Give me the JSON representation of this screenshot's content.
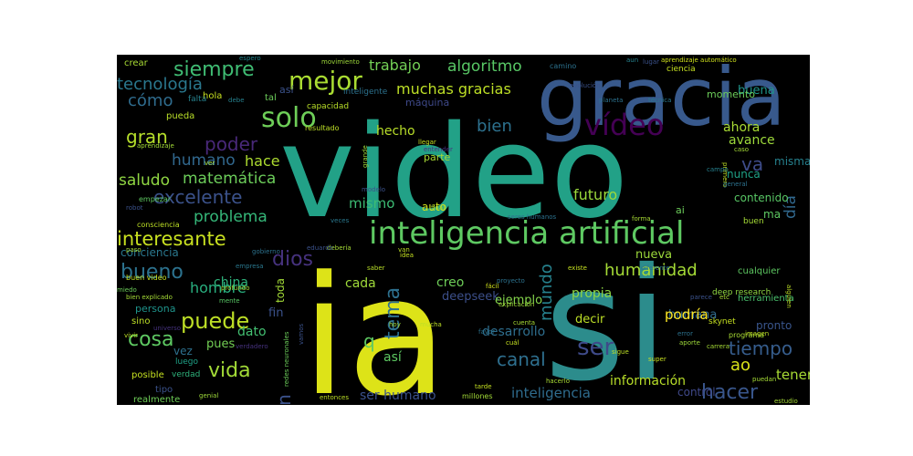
{
  "wordcloud": {
    "background": "#000000",
    "words": [
      {
        "text": "video",
        "color": "#22a187"
      },
      {
        "text": "ia",
        "color": "#dde318"
      },
      {
        "text": "si",
        "color": "#2c8c8c"
      },
      {
        "text": "gracia",
        "color": "#38598c"
      },
      {
        "text": "inteligencia artificial",
        "color": "#5ec962"
      },
      {
        "text": "vídeo",
        "color": "#440154"
      },
      {
        "text": "solo",
        "color": "#6ece58"
      },
      {
        "text": "mejor",
        "color": "#aadc32"
      },
      {
        "text": "siempre",
        "color": "#3fbc73"
      },
      {
        "text": "tecnología",
        "color": "#2a788e"
      },
      {
        "text": "cómo",
        "color": "#2f6c8e"
      },
      {
        "text": "gran",
        "color": "#b5de2b"
      },
      {
        "text": "poder",
        "color": "#482878"
      },
      {
        "text": "humano",
        "color": "#31688e"
      },
      {
        "text": "hace",
        "color": "#addc30"
      },
      {
        "text": "saludo",
        "color": "#90d743"
      },
      {
        "text": "matemática",
        "color": "#6ccd5a"
      },
      {
        "text": "excelente",
        "color": "#3b528b"
      },
      {
        "text": "problema",
        "color": "#35b779"
      },
      {
        "text": "interesante",
        "color": "#c8e020"
      },
      {
        "text": "dios",
        "color": "#46327e"
      },
      {
        "text": "bueno",
        "color": "#2c728e"
      },
      {
        "text": "puede",
        "color": "#bddf26"
      },
      {
        "text": "cosa",
        "color": "#5ec962"
      },
      {
        "text": "vida",
        "color": "#a2da37"
      },
      {
        "text": "tema",
        "color": "#2d708e"
      },
      {
        "text": "mundo",
        "color": "#26828e"
      },
      {
        "text": "canal",
        "color": "#2e6f8e"
      },
      {
        "text": "ser",
        "color": "#3e4a89"
      },
      {
        "text": "tan",
        "color": "#3b528b"
      },
      {
        "text": "hacer",
        "color": "#39568c"
      },
      {
        "text": "humanidad",
        "color": "#a5db36"
      },
      {
        "text": "tiempo",
        "color": "#365d8d"
      },
      {
        "text": "bien",
        "color": "#2d718e"
      },
      {
        "text": "trabajo",
        "color": "#73d056"
      },
      {
        "text": "algoritmo",
        "color": "#58c765"
      },
      {
        "text": "muchas gracias",
        "color": "#bddf26"
      },
      {
        "text": "futuro",
        "color": "#9bd93c"
      },
      {
        "text": "va",
        "color": "#3e4c8a"
      },
      {
        "text": "día",
        "color": "#31688e"
      },
      {
        "text": "ahora",
        "color": "#a8db34"
      },
      {
        "text": "avance",
        "color": "#9dd93b"
      },
      {
        "text": "buena",
        "color": "#1f968b"
      },
      {
        "text": "momento",
        "color": "#6ccd5a"
      },
      {
        "text": "ciencia",
        "color": "#c5e021"
      },
      {
        "text": "mismo",
        "color": "#3dbc74"
      },
      {
        "text": "hombre",
        "color": "#29af7f"
      },
      {
        "text": "china",
        "color": "#2fb47c"
      },
      {
        "text": "conciencia",
        "color": "#2a788e"
      },
      {
        "text": "desarrollo",
        "color": "#2e6e8e"
      },
      {
        "text": "creo",
        "color": "#6ece58"
      },
      {
        "text": "así",
        "color": "#5ec962"
      },
      {
        "text": "dato",
        "color": "#43bf71"
      },
      {
        "text": "ser humano",
        "color": "#3b528b"
      },
      {
        "text": "inteligencia",
        "color": "#2f6c8e"
      },
      {
        "text": "información",
        "color": "#b8de29"
      },
      {
        "text": "humana",
        "color": "#306a8e"
      },
      {
        "text": "podría",
        "color": "#fde725"
      },
      {
        "text": "propia",
        "color": "#8ed645"
      },
      {
        "text": "ao",
        "color": "#d8e219"
      },
      {
        "text": "tener",
        "color": "#a8db34"
      },
      {
        "text": "control",
        "color": "#3f4889"
      },
      {
        "text": "cada",
        "color": "#9fda3a"
      },
      {
        "text": "toda",
        "color": "#a2da37"
      },
      {
        "text": "fin",
        "color": "#3b528b"
      },
      {
        "text": "pues",
        "color": "#74d055"
      },
      {
        "text": "vez",
        "color": "#2d708e"
      },
      {
        "text": "q",
        "color": "#5ec962"
      },
      {
        "text": "deepseek",
        "color": "#3c4f8a"
      },
      {
        "text": "ejemplo",
        "color": "#84d44b"
      },
      {
        "text": "hecho",
        "color": "#b8de29"
      },
      {
        "text": "parte",
        "color": "#a8db34"
      },
      {
        "text": "auto",
        "color": "#d0e11c"
      },
      {
        "text": "nueva",
        "color": "#9dd93b"
      },
      {
        "text": "decir",
        "color": "#bddf26"
      },
      {
        "text": "pronto",
        "color": "#39558c"
      },
      {
        "text": "nunca",
        "color": "#1fa287"
      },
      {
        "text": "misma",
        "color": "#26818e"
      },
      {
        "text": "contenido",
        "color": "#58c765"
      },
      {
        "text": "ma",
        "color": "#5ec962"
      },
      {
        "text": "ai",
        "color": "#6ccd5a"
      },
      {
        "text": "buen",
        "color": "#a5db36"
      },
      {
        "text": "herramienta",
        "color": "#4ac16d"
      },
      {
        "text": "cualquier",
        "color": "#5ec962"
      },
      {
        "text": "deep research",
        "color": "#90d743"
      },
      {
        "text": "skynet",
        "color": "#c5e021"
      },
      {
        "text": "programa",
        "color": "#a8db34"
      },
      {
        "text": "puedan",
        "color": "#a5db36"
      },
      {
        "text": "persona",
        "color": "#1f948c"
      },
      {
        "text": "sino",
        "color": "#bddf26"
      },
      {
        "text": "luego",
        "color": "#1fa287"
      },
      {
        "text": "posible",
        "color": "#c5e021"
      },
      {
        "text": "tipo",
        "color": "#3b528b"
      },
      {
        "text": "realmente",
        "color": "#6ece58"
      },
      {
        "text": "verdad",
        "color": "#2fb47c"
      },
      {
        "text": "máquina",
        "color": "#3e4989"
      },
      {
        "text": "capacidad",
        "color": "#b8de29"
      },
      {
        "text": "resultado",
        "color": "#bddf26"
      },
      {
        "text": "inteligente",
        "color": "#2c728e"
      },
      {
        "text": "tal",
        "color": "#6ccd5a"
      },
      {
        "text": "hola",
        "color": "#c8e020"
      },
      {
        "text": "falta",
        "color": "#26828e"
      },
      {
        "text": "pueda",
        "color": "#b8de29"
      },
      {
        "text": "así",
        "color": "#3b528b"
      },
      {
        "text": "crear",
        "color": "#a8db34"
      },
      {
        "text": "espero",
        "color": "#24868e"
      },
      {
        "text": "movimiento",
        "color": "#9fda3a"
      },
      {
        "text": "camino",
        "color": "#2c728e"
      },
      {
        "text": "aun",
        "color": "#26818e"
      },
      {
        "text": "lugar",
        "color": "#3b528b"
      },
      {
        "text": "aprendizaje automático",
        "color": "#d0e11c"
      },
      {
        "text": "planeta",
        "color": "#2c728e"
      },
      {
        "text": "técnica",
        "color": "#2a788e"
      },
      {
        "text": "evolución",
        "color": "#3b528b"
      },
      {
        "text": "aprendizaje",
        "color": "#a2da37"
      },
      {
        "text": "debe",
        "color": "#26818e"
      },
      {
        "text": "llegar",
        "color": "#c5e021"
      },
      {
        "text": "grande",
        "color": "#9fda3a"
      },
      {
        "text": "entender",
        "color": "#46327e"
      },
      {
        "text": "final",
        "color": "#a5db36"
      },
      {
        "text": "seres humanos",
        "color": "#2c728e"
      },
      {
        "text": "ver",
        "color": "#a8db34"
      },
      {
        "text": "empezar",
        "color": "#5ec962"
      },
      {
        "text": "robot",
        "color": "#3b528b"
      },
      {
        "text": "consciencia",
        "color": "#bddf26"
      },
      {
        "text": "paso",
        "color": "#a8db34"
      },
      {
        "text": "buen video",
        "color": "#c5e021"
      },
      {
        "text": "miedo",
        "color": "#6ccd5a"
      },
      {
        "text": "bien explicado",
        "color": "#a5db36"
      },
      {
        "text": "vivir",
        "color": "#bddf26"
      },
      {
        "text": "universo",
        "color": "#46327e"
      },
      {
        "text": "empresa",
        "color": "#2a788e"
      },
      {
        "text": "mente",
        "color": "#58c765"
      },
      {
        "text": "debería",
        "color": "#a5db36"
      },
      {
        "text": "saber",
        "color": "#b8de29"
      },
      {
        "text": "fácil",
        "color": "#d0e11c"
      },
      {
        "text": "explicación",
        "color": "#9fda3a"
      },
      {
        "text": "hoy",
        "color": "#a2da37"
      },
      {
        "text": "mucha",
        "color": "#bddf26"
      },
      {
        "text": "favor",
        "color": "#2c728e"
      },
      {
        "text": "cuál",
        "color": "#c5e021"
      },
      {
        "text": "cuenta",
        "color": "#a8db34"
      },
      {
        "text": "sigue",
        "color": "#bddf26"
      },
      {
        "text": "error",
        "color": "#2c728e"
      },
      {
        "text": "aporte",
        "color": "#9fda3a"
      },
      {
        "text": "carrera",
        "color": "#a5db36"
      },
      {
        "text": "imagen",
        "color": "#bddf26"
      },
      {
        "text": "super",
        "color": "#c8e020"
      },
      {
        "text": "hacerlo",
        "color": "#a8db34"
      },
      {
        "text": "millones",
        "color": "#a2da37"
      },
      {
        "text": "tarde",
        "color": "#c5e021"
      },
      {
        "text": "entonces",
        "color": "#bddf26"
      },
      {
        "text": "redes neuronales",
        "color": "#6ccd5a"
      },
      {
        "text": "genial",
        "color": "#9fda3a"
      },
      {
        "text": "estudio",
        "color": "#a5db36"
      },
      {
        "text": "alguien",
        "color": "#bddf26"
      },
      {
        "text": "etc",
        "color": "#a8db34"
      },
      {
        "text": "existe",
        "color": "#c5e021"
      },
      {
        "text": "diferente",
        "color": "#2c728e"
      },
      {
        "text": "forma",
        "color": "#a8db34"
      },
      {
        "text": "primero",
        "color": "#bddf26"
      },
      {
        "text": "campo",
        "color": "#26818e"
      },
      {
        "text": "caso",
        "color": "#a5db36"
      },
      {
        "text": "general",
        "color": "#2c728e"
      },
      {
        "text": "parece",
        "color": "#3b528b"
      },
      {
        "text": "veces",
        "color": "#2a788e"
      },
      {
        "text": "eduardo",
        "color": "#3b528b"
      },
      {
        "text": "gobierno",
        "color": "#2c728e"
      },
      {
        "text": "profundo",
        "color": "#a8db34"
      },
      {
        "text": "modelo",
        "color": "#3b528b"
      },
      {
        "text": "verdadero",
        "color": "#46327e"
      },
      {
        "text": "vamos",
        "color": "#3b528b"
      },
      {
        "text": "proyecto",
        "color": "#2c728e"
      },
      {
        "text": "van",
        "color": "#bddf26"
      },
      {
        "text": "idea",
        "color": "#c5e021"
      }
    ]
  }
}
